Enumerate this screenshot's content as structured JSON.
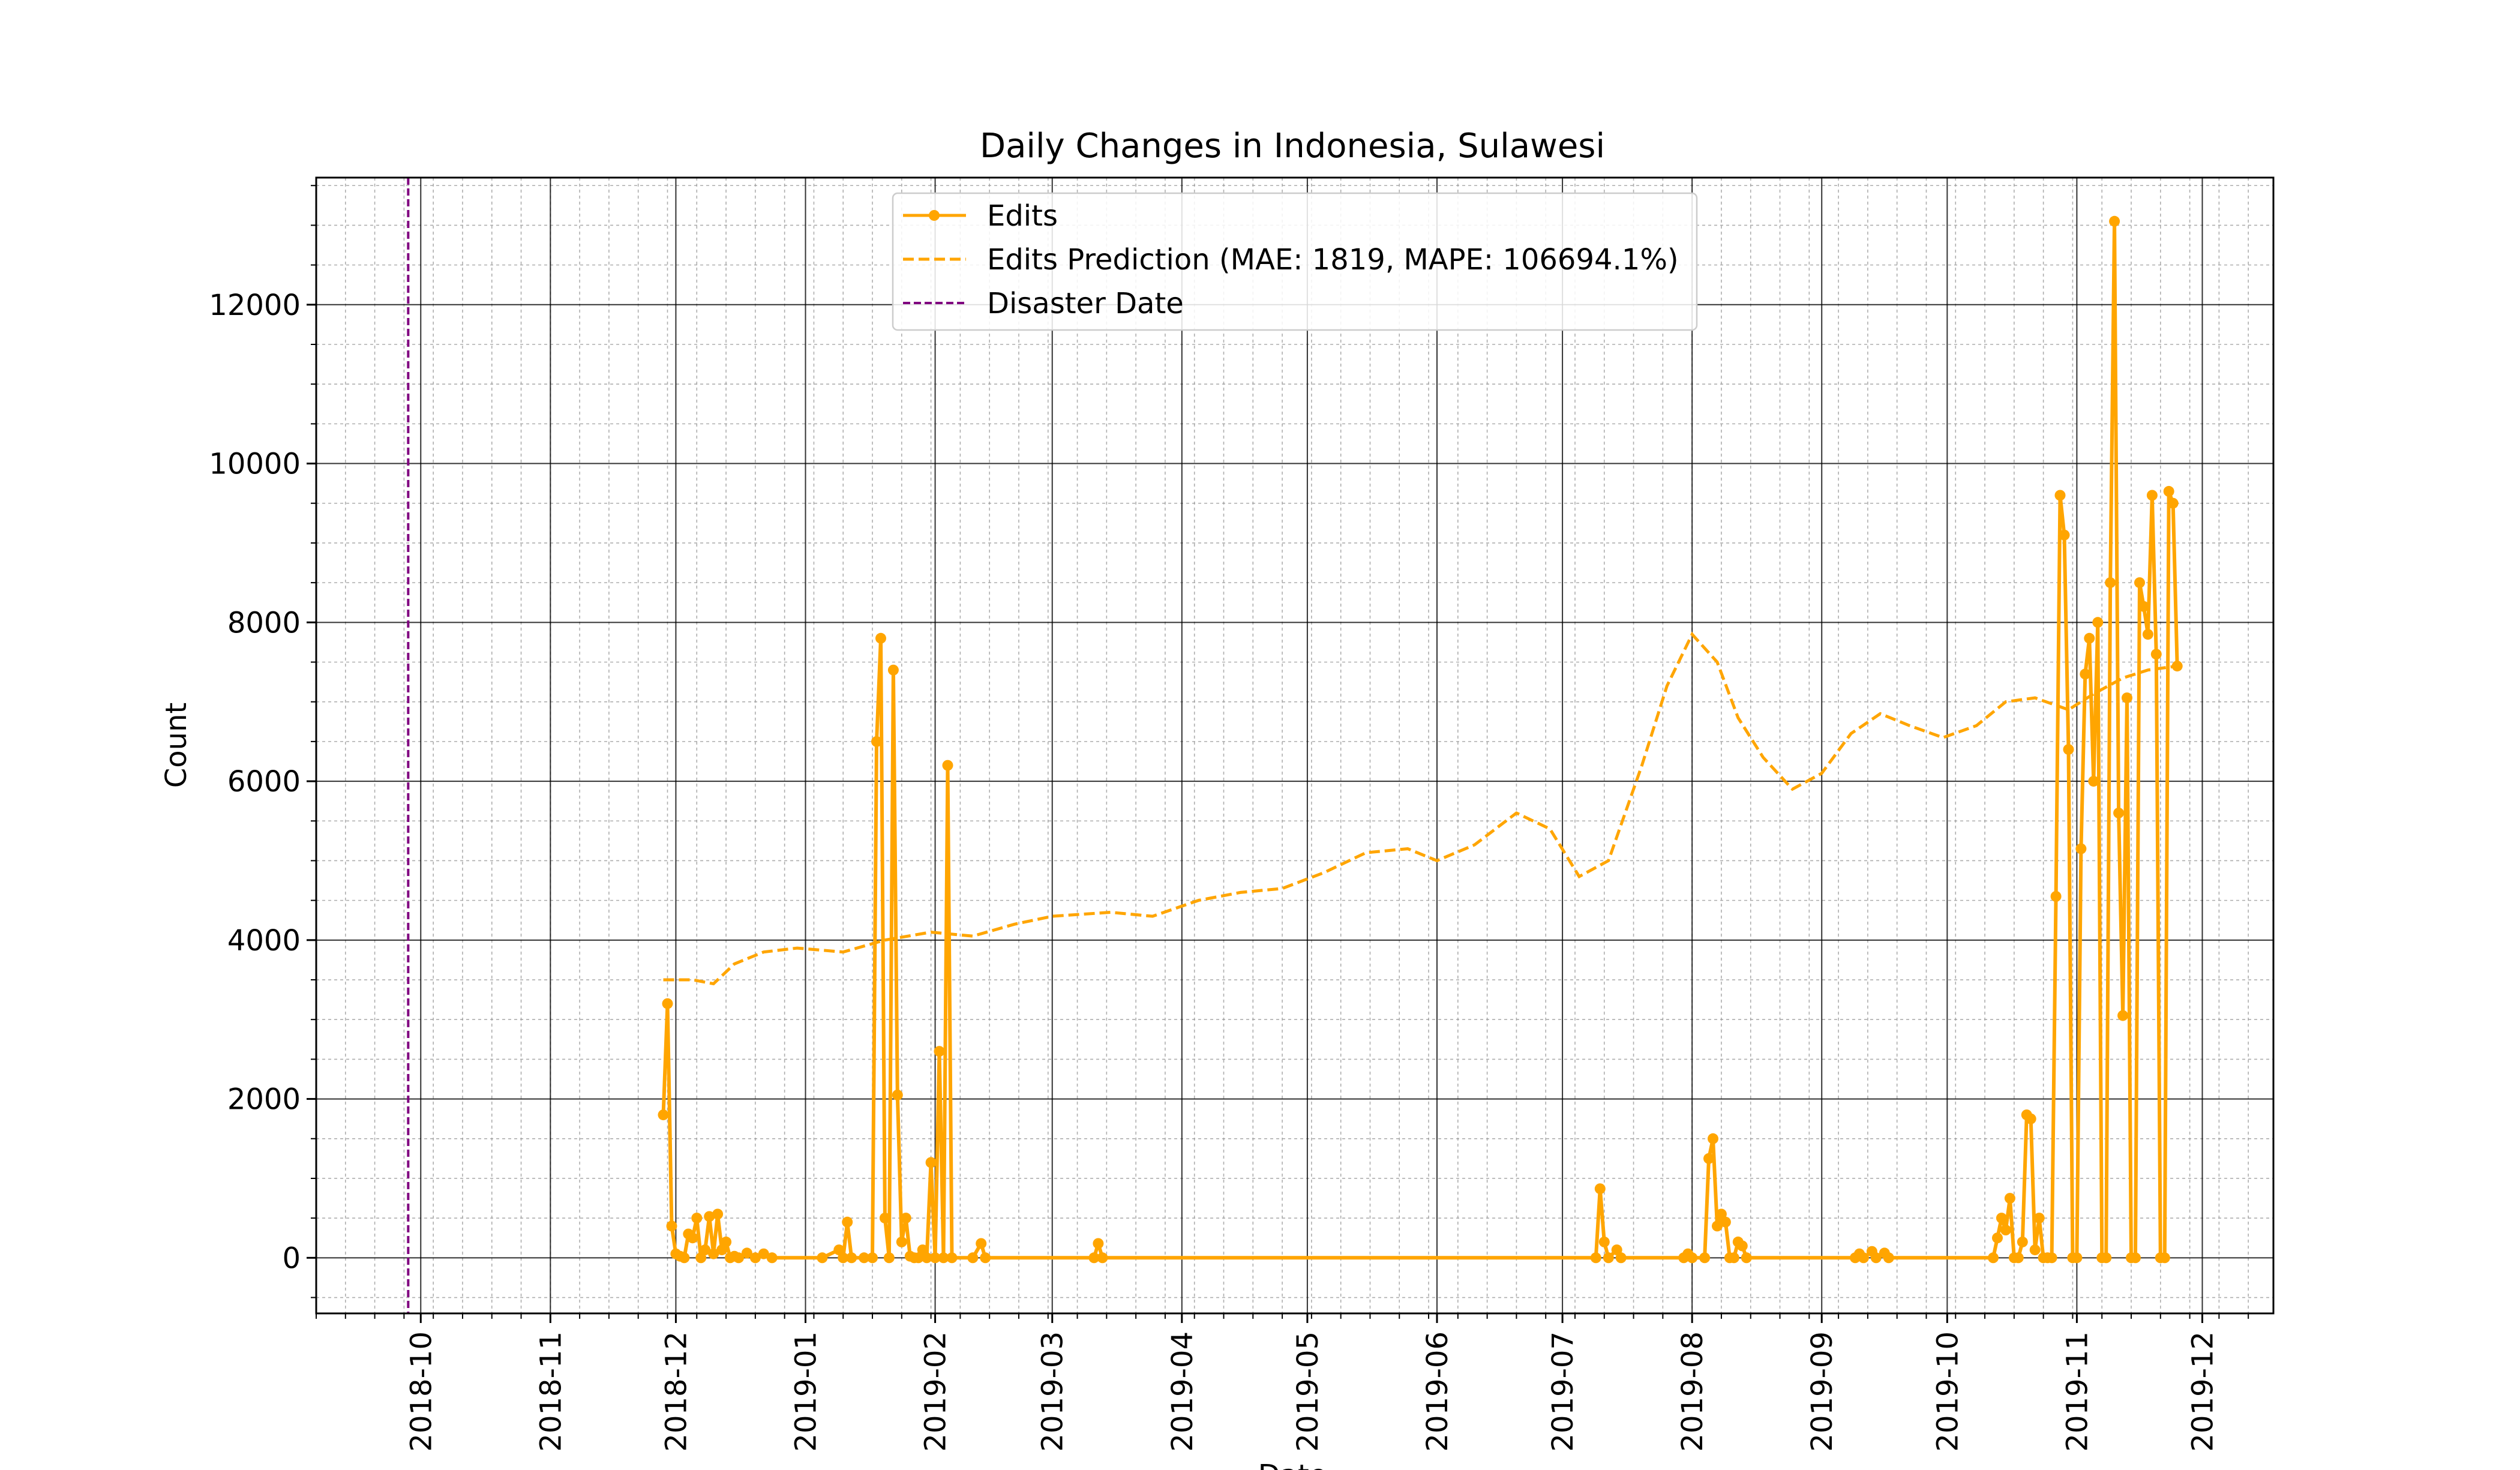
{
  "chart_data": {
    "type": "line",
    "title": "Daily Changes in Indonesia, Sulawesi",
    "xlabel": "Date",
    "ylabel": "Count",
    "x_range": [
      "2018-09-06",
      "2019-12-18"
    ],
    "ylim": [
      -700,
      13600
    ],
    "grid": "major solid + minor dotted",
    "legend_position": "top-center",
    "x_ticks": [
      "2018-10",
      "2018-11",
      "2018-12",
      "2019-01",
      "2019-02",
      "2019-03",
      "2019-04",
      "2019-05",
      "2019-06",
      "2019-07",
      "2019-08",
      "2019-09",
      "2019-10",
      "2019-11",
      "2019-12"
    ],
    "y_ticks": [
      0,
      2000,
      4000,
      6000,
      8000,
      10000,
      12000
    ],
    "disaster_date": "2018-09-28",
    "series": [
      {
        "name": "Edits",
        "color": "#FFA500",
        "style": "solid-with-markers",
        "points": [
          [
            "2018-11-28",
            1800
          ],
          [
            "2018-11-29",
            3200
          ],
          [
            "2018-11-30",
            400
          ],
          [
            "2018-12-01",
            50
          ],
          [
            "2018-12-02",
            20
          ],
          [
            "2018-12-03",
            0
          ],
          [
            "2018-12-04",
            300
          ],
          [
            "2018-12-05",
            250
          ],
          [
            "2018-12-06",
            500
          ],
          [
            "2018-12-07",
            0
          ],
          [
            "2018-12-08",
            100
          ],
          [
            "2018-12-09",
            520
          ],
          [
            "2018-12-10",
            50
          ],
          [
            "2018-12-11",
            550
          ],
          [
            "2018-12-12",
            100
          ],
          [
            "2018-12-13",
            200
          ],
          [
            "2018-12-14",
            0
          ],
          [
            "2018-12-15",
            20
          ],
          [
            "2018-12-16",
            0
          ],
          [
            "2018-12-18",
            60
          ],
          [
            "2018-12-20",
            0
          ],
          [
            "2018-12-22",
            50
          ],
          [
            "2018-12-24",
            0
          ],
          [
            "2019-01-05",
            0
          ],
          [
            "2019-01-09",
            100
          ],
          [
            "2019-01-10",
            0
          ],
          [
            "2019-01-11",
            450
          ],
          [
            "2019-01-12",
            0
          ],
          [
            "2019-01-15",
            0
          ],
          [
            "2019-01-17",
            0
          ],
          [
            "2019-01-18",
            6500
          ],
          [
            "2019-01-19",
            7800
          ],
          [
            "2019-01-20",
            500
          ],
          [
            "2019-01-21",
            0
          ],
          [
            "2019-01-22",
            7400
          ],
          [
            "2019-01-23",
            2050
          ],
          [
            "2019-01-24",
            200
          ],
          [
            "2019-01-25",
            500
          ],
          [
            "2019-01-26",
            20
          ],
          [
            "2019-01-27",
            0
          ],
          [
            "2019-01-28",
            0
          ],
          [
            "2019-01-29",
            100
          ],
          [
            "2019-01-30",
            0
          ],
          [
            "2019-01-31",
            1200
          ],
          [
            "2019-02-01",
            0
          ],
          [
            "2019-02-02",
            2600
          ],
          [
            "2019-02-03",
            0
          ],
          [
            "2019-02-04",
            6200
          ],
          [
            "2019-02-05",
            0
          ],
          [
            "2019-02-10",
            0
          ],
          [
            "2019-02-12",
            180
          ],
          [
            "2019-02-13",
            0
          ],
          [
            "2019-03-11",
            0
          ],
          [
            "2019-03-12",
            180
          ],
          [
            "2019-03-13",
            0
          ],
          [
            "2019-07-09",
            0
          ],
          [
            "2019-07-10",
            870
          ],
          [
            "2019-07-11",
            200
          ],
          [
            "2019-07-12",
            0
          ],
          [
            "2019-07-14",
            100
          ],
          [
            "2019-07-15",
            0
          ],
          [
            "2019-07-30",
            0
          ],
          [
            "2019-07-31",
            50
          ],
          [
            "2019-08-01",
            0
          ],
          [
            "2019-08-04",
            0
          ],
          [
            "2019-08-05",
            1250
          ],
          [
            "2019-08-06",
            1500
          ],
          [
            "2019-08-07",
            400
          ],
          [
            "2019-08-08",
            550
          ],
          [
            "2019-08-09",
            450
          ],
          [
            "2019-08-10",
            0
          ],
          [
            "2019-08-11",
            0
          ],
          [
            "2019-08-12",
            200
          ],
          [
            "2019-08-13",
            150
          ],
          [
            "2019-08-14",
            0
          ],
          [
            "2019-09-09",
            0
          ],
          [
            "2019-09-10",
            50
          ],
          [
            "2019-09-11",
            0
          ],
          [
            "2019-09-13",
            80
          ],
          [
            "2019-09-14",
            0
          ],
          [
            "2019-09-16",
            60
          ],
          [
            "2019-09-17",
            0
          ],
          [
            "2019-10-12",
            0
          ],
          [
            "2019-10-13",
            250
          ],
          [
            "2019-10-14",
            500
          ],
          [
            "2019-10-15",
            350
          ],
          [
            "2019-10-16",
            750
          ],
          [
            "2019-10-17",
            0
          ],
          [
            "2019-10-18",
            0
          ],
          [
            "2019-10-19",
            200
          ],
          [
            "2019-10-20",
            1800
          ],
          [
            "2019-10-21",
            1750
          ],
          [
            "2019-10-22",
            100
          ],
          [
            "2019-10-23",
            500
          ],
          [
            "2019-10-24",
            0
          ],
          [
            "2019-10-25",
            0
          ],
          [
            "2019-10-26",
            0
          ],
          [
            "2019-10-27",
            4550
          ],
          [
            "2019-10-28",
            9600
          ],
          [
            "2019-10-29",
            9100
          ],
          [
            "2019-10-30",
            6400
          ],
          [
            "2019-10-31",
            0
          ],
          [
            "2019-11-01",
            0
          ],
          [
            "2019-11-02",
            5150
          ],
          [
            "2019-11-03",
            7350
          ],
          [
            "2019-11-04",
            7800
          ],
          [
            "2019-11-05",
            6000
          ],
          [
            "2019-11-06",
            8000
          ],
          [
            "2019-11-07",
            0
          ],
          [
            "2019-11-08",
            0
          ],
          [
            "2019-11-09",
            8500
          ],
          [
            "2019-11-10",
            13050
          ],
          [
            "2019-11-11",
            5600
          ],
          [
            "2019-11-12",
            3050
          ],
          [
            "2019-11-13",
            7050
          ],
          [
            "2019-11-14",
            0
          ],
          [
            "2019-11-15",
            0
          ],
          [
            "2019-11-16",
            8500
          ],
          [
            "2019-11-17",
            8200
          ],
          [
            "2019-11-18",
            7850
          ],
          [
            "2019-11-19",
            9600
          ],
          [
            "2019-11-20",
            7600
          ],
          [
            "2019-11-21",
            0
          ],
          [
            "2019-11-22",
            0
          ],
          [
            "2019-11-23",
            9650
          ],
          [
            "2019-11-24",
            9500
          ],
          [
            "2019-11-25",
            7450
          ]
        ]
      },
      {
        "name": "Edits Prediction (MAE: 1819, MAPE: 106694.1%)",
        "color": "#FFA500",
        "style": "dashed",
        "points": [
          [
            "2018-11-28",
            3500
          ],
          [
            "2018-12-05",
            3500
          ],
          [
            "2018-12-10",
            3450
          ],
          [
            "2018-12-15",
            3700
          ],
          [
            "2018-12-22",
            3850
          ],
          [
            "2018-12-30",
            3900
          ],
          [
            "2019-01-10",
            3850
          ],
          [
            "2019-01-20",
            4000
          ],
          [
            "2019-01-31",
            4100
          ],
          [
            "2019-02-10",
            4050
          ],
          [
            "2019-02-20",
            4200
          ],
          [
            "2019-03-01",
            4300
          ],
          [
            "2019-03-15",
            4350
          ],
          [
            "2019-03-25",
            4300
          ],
          [
            "2019-04-05",
            4500
          ],
          [
            "2019-04-15",
            4600
          ],
          [
            "2019-04-25",
            4650
          ],
          [
            "2019-05-05",
            4850
          ],
          [
            "2019-05-15",
            5100
          ],
          [
            "2019-05-25",
            5150
          ],
          [
            "2019-06-01",
            5000
          ],
          [
            "2019-06-10",
            5200
          ],
          [
            "2019-06-20",
            5600
          ],
          [
            "2019-06-28",
            5400
          ],
          [
            "2019-07-05",
            4800
          ],
          [
            "2019-07-12",
            5000
          ],
          [
            "2019-07-20",
            6200
          ],
          [
            "2019-07-26",
            7200
          ],
          [
            "2019-08-01",
            7850
          ],
          [
            "2019-08-07",
            7500
          ],
          [
            "2019-08-12",
            6800
          ],
          [
            "2019-08-18",
            6300
          ],
          [
            "2019-08-25",
            5900
          ],
          [
            "2019-09-01",
            6100
          ],
          [
            "2019-09-08",
            6600
          ],
          [
            "2019-09-15",
            6850
          ],
          [
            "2019-09-22",
            6700
          ],
          [
            "2019-09-30",
            6550
          ],
          [
            "2019-10-08",
            6700
          ],
          [
            "2019-10-15",
            7000
          ],
          [
            "2019-10-22",
            7050
          ],
          [
            "2019-10-30",
            6900
          ],
          [
            "2019-11-05",
            7100
          ],
          [
            "2019-11-12",
            7300
          ],
          [
            "2019-11-18",
            7400
          ],
          [
            "2019-11-25",
            7450
          ]
        ]
      }
    ],
    "reference_lines": [
      {
        "name": "Disaster Date",
        "color": "#800080",
        "style": "dashed",
        "x": "2018-09-28"
      }
    ]
  }
}
